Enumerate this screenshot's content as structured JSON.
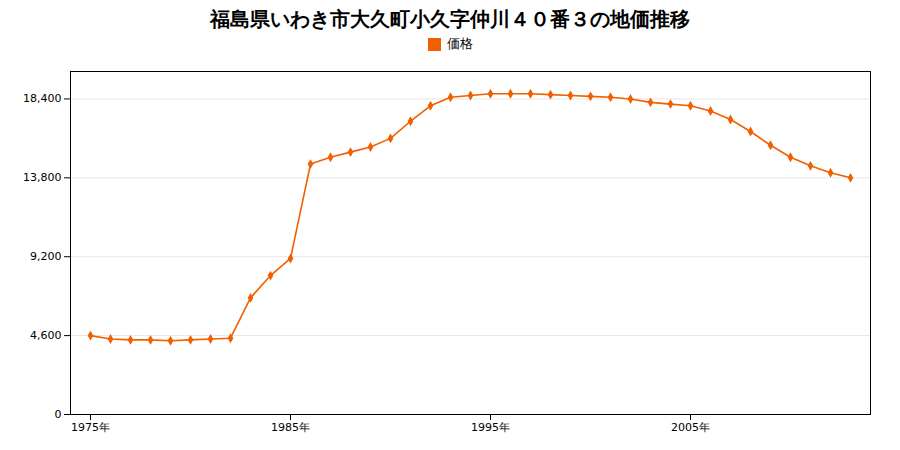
{
  "chart_data": {
    "type": "line",
    "title": "福島県いわき市大久町小久字仲川４０番３の地価推移",
    "x": [
      1975,
      1976,
      1977,
      1978,
      1979,
      1980,
      1981,
      1982,
      1983,
      1984,
      1985,
      1986,
      1987,
      1988,
      1989,
      1990,
      1991,
      1992,
      1993,
      1994,
      1995,
      1996,
      1997,
      1998,
      1999,
      2000,
      2001,
      2002,
      2003,
      2004,
      2005,
      2006,
      2007,
      2008,
      2009,
      2010,
      2011,
      2012,
      2013
    ],
    "series": [
      {
        "name": "価格",
        "color": "#f06000",
        "marker": "diamond",
        "values": [
          4600,
          4400,
          4350,
          4350,
          4300,
          4350,
          4400,
          4450,
          6800,
          8100,
          9100,
          14600,
          15000,
          15300,
          15600,
          16100,
          17100,
          18000,
          18500,
          18600,
          18700,
          18700,
          18700,
          18650,
          18600,
          18550,
          18500,
          18400,
          18200,
          18100,
          18000,
          17700,
          17200,
          16500,
          15700,
          15000,
          14500,
          14100,
          13800
        ]
      }
    ],
    "xlim": [
      1974,
      2014
    ],
    "xticks": [
      {
        "value": 1975,
        "label": "1975年"
      },
      {
        "value": 1985,
        "label": "1985年"
      },
      {
        "value": 1995,
        "label": "1995年"
      },
      {
        "value": 2005,
        "label": "2005年"
      }
    ],
    "ylim": [
      0,
      20000
    ],
    "yticks": [
      0,
      {
        "value": 4600,
        "label": "4,600"
      },
      {
        "value": 9200,
        "label": "9,200"
      },
      {
        "value": 13800,
        "label": "13,800"
      },
      {
        "value": 18400,
        "label": "18,400"
      }
    ],
    "grid": "y",
    "legend": "top"
  }
}
